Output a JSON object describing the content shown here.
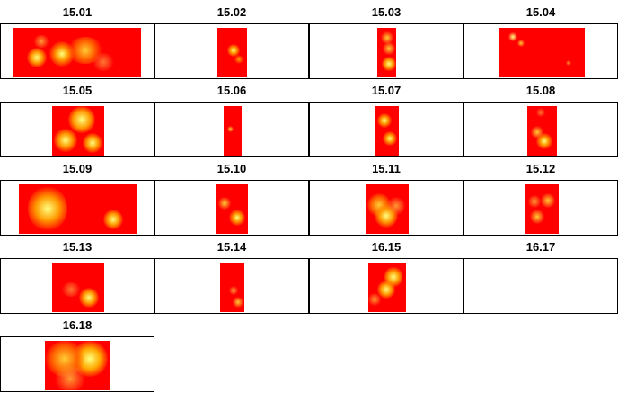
{
  "panels": [
    {
      "label": "15.01",
      "hasData": true
    },
    {
      "label": "15.02",
      "hasData": true
    },
    {
      "label": "15.03",
      "hasData": true
    },
    {
      "label": "15.04",
      "hasData": true
    },
    {
      "label": "15.05",
      "hasData": true
    },
    {
      "label": "15.06",
      "hasData": true
    },
    {
      "label": "15.07",
      "hasData": true
    },
    {
      "label": "15.08",
      "hasData": true
    },
    {
      "label": "15.09",
      "hasData": true
    },
    {
      "label": "15.10",
      "hasData": true
    },
    {
      "label": "15.11",
      "hasData": true
    },
    {
      "label": "15.12",
      "hasData": true
    },
    {
      "label": "15.13",
      "hasData": true
    },
    {
      "label": "15.14",
      "hasData": true
    },
    {
      "label": "16.15",
      "hasData": true
    },
    {
      "label": "16.17",
      "hasData": false
    },
    {
      "label": "16.18",
      "hasData": true
    }
  ],
  "colors": {
    "base": "#ff0000",
    "hot": "#ffff66",
    "mid": "#ff9900",
    "frame": "#000000"
  }
}
